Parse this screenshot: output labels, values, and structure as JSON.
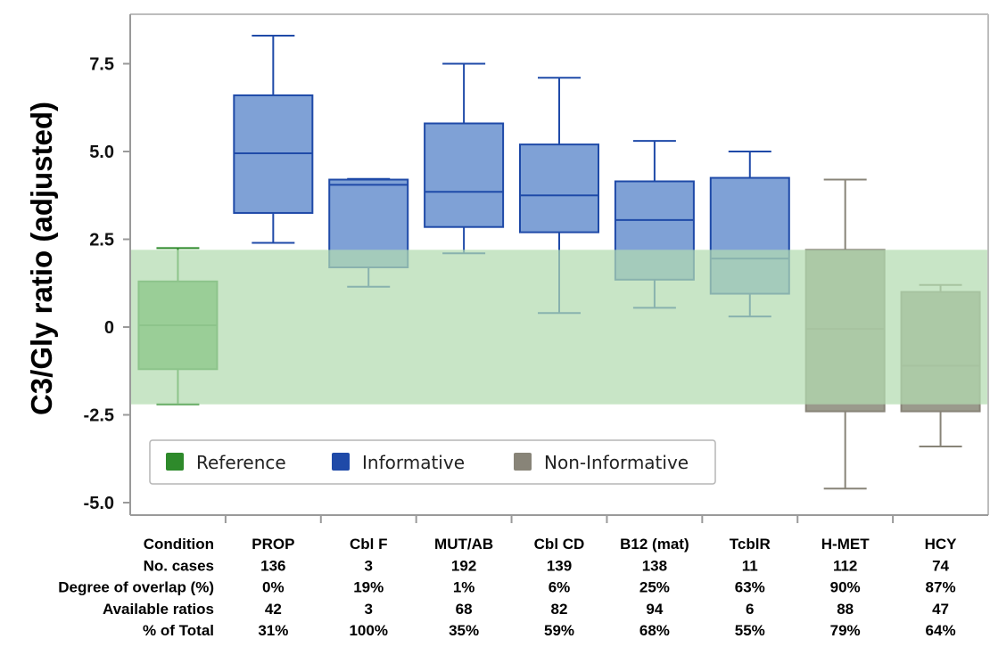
{
  "chart_data": {
    "type": "box",
    "ylabel": "C3/Gly ratio (adjusted)",
    "ylim": [
      -5.3,
      9.0
    ],
    "yticks": [
      {
        "value": 7.5,
        "label": "7.5"
      },
      {
        "value": 5.0,
        "label": "5.0"
      },
      {
        "value": 2.5,
        "label": "2.5"
      },
      {
        "value": 0,
        "label": "0"
      },
      {
        "value": -2.5,
        "label": "-2.5"
      },
      {
        "value": -5.0,
        "label": "-5.0"
      }
    ],
    "reference_range": {
      "low": -2.2,
      "high": 2.2,
      "color": "#b3dbb0"
    },
    "groups": [
      {
        "key": "reference",
        "label": "Reference",
        "fill": "#5aab57",
        "stroke": "#2e8a2b"
      },
      {
        "key": "informative",
        "label": "Informative",
        "fill": "#7fa1d6",
        "stroke": "#1f4aa8"
      },
      {
        "key": "noninformative",
        "label": "Non-Informative",
        "fill": "#9a9a8c",
        "stroke": "#888478"
      }
    ],
    "boxes": [
      {
        "group": "reference",
        "whisker_low": -2.2,
        "q1": -1.2,
        "median": 0.05,
        "q3": 1.3,
        "whisker_high": 2.25
      },
      {
        "group": "informative",
        "whisker_low": 2.4,
        "q1": 3.25,
        "median": 4.95,
        "q3": 6.6,
        "whisker_high": 8.3
      },
      {
        "group": "informative",
        "whisker_low": 1.15,
        "q1": 1.7,
        "median": 4.05,
        "q3": 4.2,
        "whisker_high": 4.22
      },
      {
        "group": "informative",
        "whisker_low": 2.1,
        "q1": 2.85,
        "median": 3.85,
        "q3": 5.8,
        "whisker_high": 7.5
      },
      {
        "group": "informative",
        "whisker_low": 0.4,
        "q1": 2.7,
        "median": 3.75,
        "q3": 5.2,
        "whisker_high": 7.1
      },
      {
        "group": "informative",
        "whisker_low": 0.55,
        "q1": 1.35,
        "median": 3.05,
        "q3": 4.15,
        "whisker_high": 5.3
      },
      {
        "group": "informative",
        "whisker_low": 0.3,
        "q1": 0.95,
        "median": 1.95,
        "q3": 4.25,
        "whisker_high": 5.0
      },
      {
        "group": "noninformative",
        "whisker_low": -4.6,
        "q1": -2.4,
        "median": -0.05,
        "q3": 2.2,
        "whisker_high": 4.2
      },
      {
        "group": "noninformative",
        "whisker_low": -3.4,
        "q1": -2.4,
        "median": -1.1,
        "q3": 1.0,
        "whisker_high": 1.2
      }
    ],
    "table": [
      {
        "header": "Condition",
        "values": [
          "PROP",
          "Cbl F",
          "MUT/AB",
          "Cbl CD",
          "B12 (mat)",
          "TcblR",
          "H-MET",
          "HCY"
        ]
      },
      {
        "header": "No. cases",
        "values": [
          "136",
          "3",
          "192",
          "139",
          "138",
          "11",
          "112",
          "74"
        ]
      },
      {
        "header": "Degree of overlap (%)",
        "values": [
          "0%",
          "19%",
          "1%",
          "6%",
          "25%",
          "63%",
          "90%",
          "87%"
        ]
      },
      {
        "header": "Available ratios",
        "values": [
          "42",
          "3",
          "68",
          "82",
          "94",
          "6",
          "88",
          "47"
        ]
      },
      {
        "header": "% of Total",
        "values": [
          "31%",
          "100%",
          "35%",
          "59%",
          "68%",
          "55%",
          "79%",
          "64%"
        ]
      }
    ],
    "legend": {
      "position": "bottom-left",
      "labels": [
        "Reference",
        "Informative",
        "Non-Informative"
      ]
    },
    "grid": false
  }
}
